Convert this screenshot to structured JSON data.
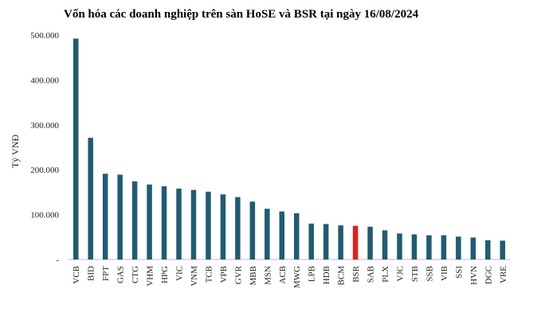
{
  "chart_data": {
    "type": "bar",
    "title": "Vốn hóa các doanh nghiệp trên sàn HoSE và BSR tại ngày 16/08/2024",
    "ylabel": "Tỷ VNĐ",
    "xlabel": "",
    "ylim": [
      0,
      500000
    ],
    "yticks": [
      0,
      100000,
      200000,
      300000,
      400000,
      500000
    ],
    "ytick_labels": [
      "-",
      "100.000",
      "200.000",
      "300.000",
      "400.000",
      "500.000"
    ],
    "categories": [
      "VCB",
      "BID",
      "FPT",
      "GAS",
      "CTG",
      "VHM",
      "HPG",
      "VIC",
      "VNM",
      "TCB",
      "VPB",
      "GVR",
      "MBB",
      "MSN",
      "ACB",
      "MWG",
      "LPB",
      "HDB",
      "BCM",
      "BSR",
      "SAB",
      "PLX",
      "VJC",
      "STB",
      "SSB",
      "VIB",
      "SSI",
      "HVN",
      "DGC",
      "VRE"
    ],
    "values": [
      492000,
      271000,
      191000,
      189000,
      174000,
      167000,
      163000,
      158000,
      155000,
      151000,
      145000,
      139000,
      129000,
      113000,
      107000,
      103000,
      80000,
      79000,
      76000,
      75000,
      73000,
      65000,
      58000,
      56000,
      54000,
      54000,
      51000,
      49000,
      43000,
      42000
    ],
    "colors": {
      "default": "#1f5c73",
      "highlight": "#e0201e"
    },
    "highlight_category": "BSR",
    "grid": false,
    "legend": "none"
  }
}
